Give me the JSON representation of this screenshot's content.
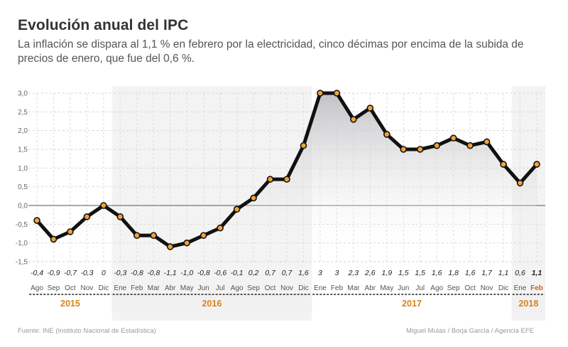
{
  "title": "Evolución anual del IPC",
  "subtitle": "La inflación se dispara al 1,1 % en febrero por la electricidad, cinco décimas por encima de la subida de precios de enero, que fue del 0,6 %.",
  "source": "Fuente: INE (Instituto Nacional de Estadística)",
  "credits": "Miguel Mulas / Borja García / Agencia EFE",
  "colors": {
    "line": "#111111",
    "marker_fill": "#f2a23a",
    "year_label": "#d9821e",
    "highlight_month": "#c8641a",
    "area": "#c9c9cc"
  },
  "chart_data": {
    "type": "line",
    "title": "Evolución anual del IPC",
    "ylabel": "",
    "xlabel": "",
    "ylim": [
      -1.5,
      3.0
    ],
    "yticks": [
      "3,0",
      "2,5",
      "2,0",
      "1,5",
      "1,0",
      "0,5",
      "0,0",
      "-0,5",
      "-1,0",
      "-1,5"
    ],
    "ytick_values": [
      3.0,
      2.5,
      2.0,
      1.5,
      1.0,
      0.5,
      0.0,
      -0.5,
      -1.0,
      -1.5
    ],
    "grid": true,
    "categories": [
      "Ago",
      "Sep",
      "Oct",
      "Nov",
      "Dic",
      "Ene",
      "Feb",
      "Mar",
      "Abr",
      "May",
      "Jun",
      "Jul",
      "Ago",
      "Sep",
      "Oct",
      "Nov",
      "Dic",
      "Ene",
      "Feb",
      "Mar",
      "Abr",
      "May",
      "Jun",
      "Jul",
      "Ago",
      "Sep",
      "Oct",
      "Nov",
      "Dic",
      "Ene",
      "Feb"
    ],
    "values": [
      -0.4,
      -0.9,
      -0.7,
      -0.3,
      0.0,
      -0.3,
      -0.8,
      -0.8,
      -1.1,
      -1.0,
      -0.8,
      -0.6,
      -0.1,
      0.2,
      0.7,
      0.7,
      1.6,
      3.0,
      3.0,
      2.3,
      2.6,
      1.9,
      1.5,
      1.5,
      1.6,
      1.8,
      1.6,
      1.7,
      1.1,
      0.6,
      1.1
    ],
    "value_labels": [
      "-0,4",
      "-0,9",
      "-0,7",
      "-0,3",
      "0",
      "-0,3",
      "-0,8",
      "-0,8",
      "-1,1",
      "-1,0",
      "-0,8",
      "-0,6",
      "-0,1",
      "0,2",
      "0,7",
      "0,7",
      "1,6",
      "3",
      "3",
      "2,3",
      "2,6",
      "1,9",
      "1,5",
      "1,5",
      "1,6",
      "1,8",
      "1,6",
      "1,7",
      "1,1",
      "0,6",
      "1,1"
    ],
    "years": [
      {
        "label": "2015",
        "start": 0,
        "end": 4
      },
      {
        "label": "2016",
        "start": 5,
        "end": 16
      },
      {
        "label": "2017",
        "start": 17,
        "end": 28
      },
      {
        "label": "2018",
        "start": 29,
        "end": 30
      }
    ],
    "highlight_index": 30
  }
}
